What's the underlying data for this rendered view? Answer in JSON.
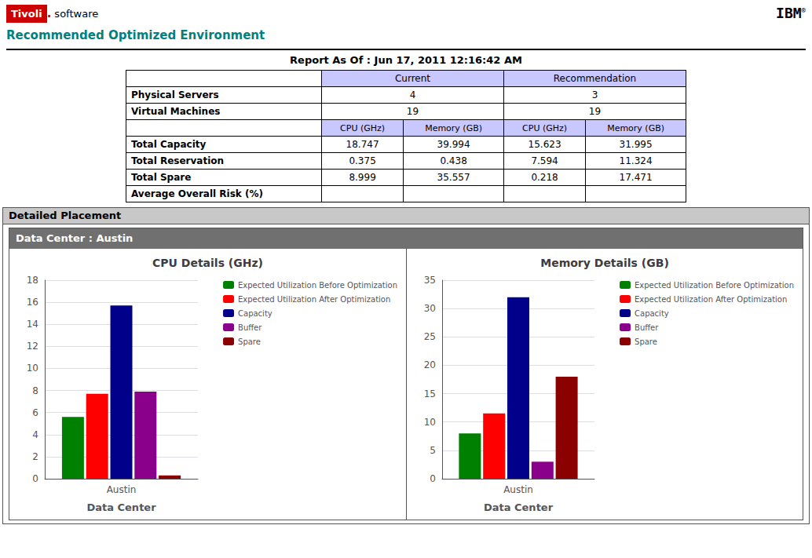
{
  "header": {
    "brand": "Tivoli",
    "brand_suffix": ".",
    "product": "software",
    "company": "IBM",
    "company_mark": "®",
    "subtitle": "Recommended Optimized Environment"
  },
  "report_title": "Report As Of : Jun 17, 2011 12:16:42 AM",
  "table": {
    "column_groups": [
      "Current",
      "Recommendation"
    ],
    "group_rows": [
      {
        "label": "Physical Servers",
        "cells": [
          "4",
          "3"
        ]
      },
      {
        "label": "Virtual Machines",
        "cells": [
          "19",
          "19"
        ]
      }
    ],
    "subcolumns": [
      "CPU (GHz)",
      "Memory (GB)",
      "CPU (GHz)",
      "Memory (GB)"
    ],
    "rows": [
      {
        "label": "Total Capacity",
        "cells": [
          "18.747",
          "39.994",
          "15.623",
          "31.995"
        ]
      },
      {
        "label": "Total Reservation",
        "cells": [
          "0.375",
          "0.438",
          "7.594",
          "11.324"
        ]
      },
      {
        "label": "Total Spare",
        "cells": [
          "8.999",
          "35.557",
          "0.218",
          "17.471"
        ]
      },
      {
        "label": "Average Overall Risk (%)",
        "cells": []
      }
    ]
  },
  "section_title": "Detailed Placement",
  "dc_label": "Data Center : Austin",
  "chart_data": [
    {
      "type": "bar",
      "title": "CPU Details (GHz)",
      "xlabel": "Data Center",
      "categories": [
        "Austin"
      ],
      "series": [
        {
          "name": "Expected Utilization Before Optimization",
          "color": "#008000",
          "values": [
            5.6
          ]
        },
        {
          "name": "Expected Utilization After Optimization",
          "color": "#FF0000",
          "values": [
            7.7
          ]
        },
        {
          "name": "Capacity",
          "color": "#00008B",
          "values": [
            15.7
          ]
        },
        {
          "name": "Buffer",
          "color": "#8B008B",
          "values": [
            7.9
          ]
        },
        {
          "name": "Spare",
          "color": "#8B0000",
          "values": [
            0.3
          ]
        }
      ],
      "ylim": [
        0,
        18
      ],
      "yticks": [
        0,
        2,
        4,
        6,
        8,
        10,
        12,
        14,
        16,
        18
      ],
      "grid": true,
      "legend": "upper right"
    },
    {
      "type": "bar",
      "title": "Memory Details (GB)",
      "xlabel": "Data Center",
      "categories": [
        "Austin"
      ],
      "series": [
        {
          "name": "Expected Utilization Before Optimization",
          "color": "#008000",
          "values": [
            8.0
          ]
        },
        {
          "name": "Expected Utilization After Optimization",
          "color": "#FF0000",
          "values": [
            11.5
          ]
        },
        {
          "name": "Capacity",
          "color": "#00008B",
          "values": [
            32.0
          ]
        },
        {
          "name": "Buffer",
          "color": "#8B008B",
          "values": [
            3.0
          ]
        },
        {
          "name": "Spare",
          "color": "#8B0000",
          "values": [
            18.0
          ]
        }
      ],
      "ylim": [
        0,
        35
      ],
      "yticks": [
        0,
        5,
        10,
        15,
        20,
        25,
        30,
        35
      ],
      "grid": true,
      "legend": "upper right"
    }
  ]
}
